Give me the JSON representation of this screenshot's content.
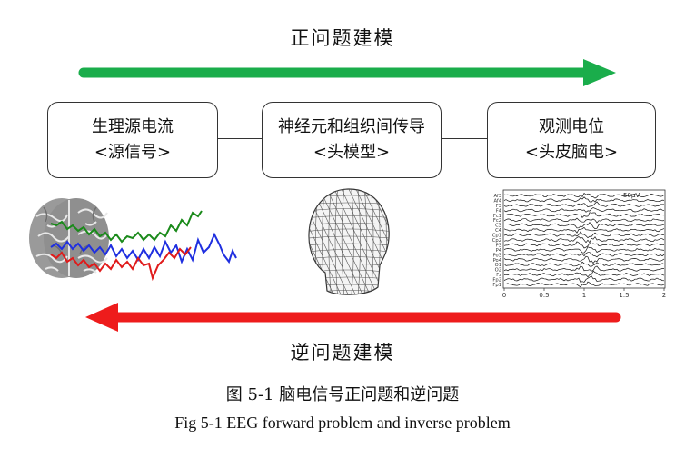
{
  "forward_label": "正问题建模",
  "inverse_label": "逆问题建模",
  "colors": {
    "forward_arrow": "#1aad4b",
    "inverse_arrow": "#ee1c1c"
  },
  "boxes": [
    {
      "title": "生理源电流",
      "subtitle": "<源信号>"
    },
    {
      "title": "神经元和组织间传导",
      "subtitle": "<头模型>"
    },
    {
      "title": "观测电位",
      "subtitle": "<头皮脑电>"
    }
  ],
  "eeg_plot": {
    "channels": [
      "Af3",
      "Af4",
      "F3",
      "F4",
      "Fc1",
      "Fc2",
      "C3",
      "C4",
      "Cp1",
      "Cp2",
      "P3",
      "P4",
      "Po3",
      "Po4",
      "O1",
      "O2",
      "Fz",
      "Fp2",
      "Fp1"
    ],
    "x_ticks": [
      "0",
      "0.5",
      "1",
      "1.5",
      "2"
    ],
    "scale_label": "50μV"
  },
  "caption_cn": "图  5-1  脑电信号正问题和逆问题",
  "caption_en": "Fig 5-1 EEG forward problem and inverse problem"
}
